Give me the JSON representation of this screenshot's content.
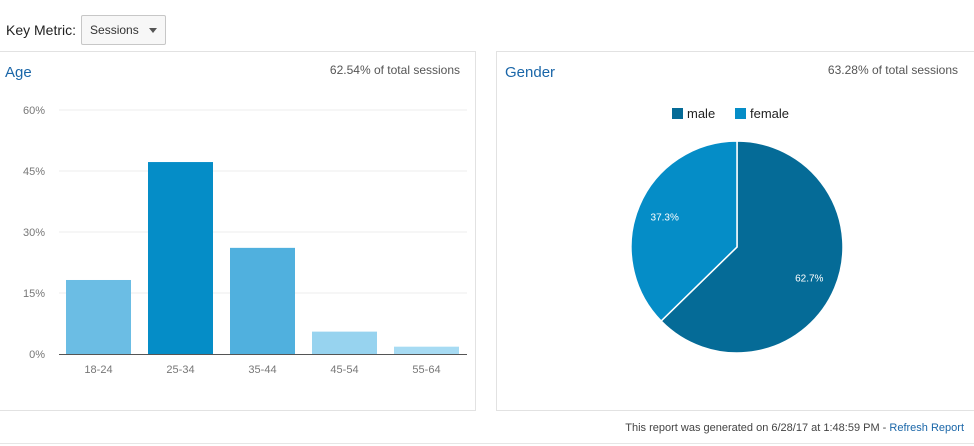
{
  "toolbar": {
    "key_metric_label": "Key Metric:",
    "metric_selected": "Sessions"
  },
  "age_panel": {
    "title": "Age",
    "subtitle": "62.54% of total sessions"
  },
  "gender_panel": {
    "title": "Gender",
    "subtitle": "63.28% of total sessions"
  },
  "footer": {
    "generated_text": "This report was generated on 6/28/17 at 1:48:59 PM - ",
    "refresh_label": "Refresh Report"
  },
  "chart_data": [
    {
      "type": "bar",
      "title": "Age",
      "categories": [
        "18-24",
        "25-34",
        "35-44",
        "45-54",
        "55-64"
      ],
      "values": [
        18.2,
        47.2,
        26.1,
        5.5,
        1.8
      ],
      "colors": [
        "#6bbde4",
        "#058dc7",
        "#50b0de",
        "#97d3ef",
        "#a7dbf3"
      ],
      "ylim": [
        0,
        60
      ],
      "yticks": [
        "0%",
        "15%",
        "30%",
        "45%",
        "60%"
      ],
      "grid": true
    },
    {
      "type": "pie",
      "title": "Gender",
      "categories": [
        "male",
        "female"
      ],
      "values": [
        62.7,
        37.3
      ],
      "labels": [
        "62.7%",
        "37.3%"
      ],
      "colors": [
        "#056b97",
        "#058dc7"
      ],
      "legend": "top"
    }
  ]
}
